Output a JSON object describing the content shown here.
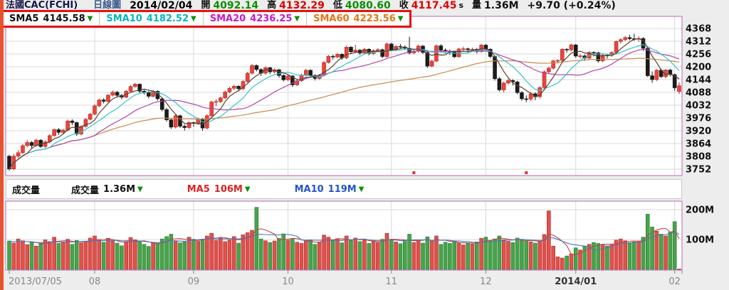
{
  "header": {
    "symbol": "法國CAC(FCHI)",
    "chart_type": "日線圖",
    "date": "2014/02/04",
    "open_label": "開",
    "open": "4092.14",
    "high_label": "高",
    "high": "4132.29",
    "low_label": "低",
    "low": "4080.60",
    "close_label": "收",
    "close": "4117.45",
    "close_suffix": "s",
    "volume_label": "量",
    "volume": "1.36M",
    "change": "+9.70 (+0.24%)"
  },
  "sma_legend": {
    "arrow": "▼",
    "arrow_color": "#089000",
    "items": [
      {
        "label": "SMA5",
        "value": "4145.58",
        "color": "#111111"
      },
      {
        "label": "SMA10",
        "value": "4182.52",
        "color": "#00b5c5"
      },
      {
        "label": "SMA20",
        "value": "4236.25",
        "color": "#c61ac6"
      },
      {
        "label": "SMA60",
        "value": "4223.56",
        "color": "#e0761a"
      }
    ]
  },
  "volume_legend": {
    "title": "成交量",
    "arrow": "▼",
    "items": [
      {
        "label": "成交量",
        "value": "1.36M",
        "color": "#111111"
      },
      {
        "label": "MA5",
        "value": "106M",
        "color": "#dd2222"
      },
      {
        "label": "MA10",
        "value": "119M",
        "color": "#2255cc"
      }
    ]
  },
  "x_axis": {
    "ticks": [
      {
        "label": "2013/07/05",
        "index": 0,
        "bold": false
      },
      {
        "label": "08",
        "index": 19,
        "bold": false
      },
      {
        "label": "09",
        "index": 41,
        "bold": false
      },
      {
        "label": "10",
        "index": 62,
        "bold": false
      },
      {
        "label": "11",
        "index": 85,
        "bold": false
      },
      {
        "label": "12",
        "index": 106,
        "bold": false
      },
      {
        "label": "2014/01",
        "index": 126,
        "bold": true
      },
      {
        "label": "02",
        "index": 148,
        "bold": false
      }
    ]
  },
  "chart_data": [
    {
      "type": "candlestick",
      "name": "price",
      "title": "法國CAC(FCHI) 日線圖",
      "ylim": [
        3724,
        4396
      ],
      "y_ticks": [
        4368,
        4312,
        4256,
        4200,
        4144,
        4088,
        4032,
        3976,
        3920,
        3864,
        3808,
        3752
      ],
      "sma_periods": [
        5,
        10,
        20,
        60
      ],
      "sma_colors": [
        "#5c4033",
        "#35c2c8",
        "#b044aa",
        "#c98a4e"
      ],
      "up_color": "#e8453c",
      "up_stroke": "#b22c25",
      "down_color": "#1b1b1b",
      "event_marker_indices": [
        90,
        115
      ],
      "ohlc": [
        [
          3809,
          3815,
          3745,
          3753
        ],
        [
          3753,
          3818,
          3748,
          3809
        ],
        [
          3809,
          3836,
          3800,
          3824
        ],
        [
          3824,
          3862,
          3818,
          3855
        ],
        [
          3855,
          3880,
          3848,
          3869
        ],
        [
          3869,
          3875,
          3840,
          3855
        ],
        [
          3855,
          3886,
          3850,
          3879
        ],
        [
          3879,
          3884,
          3845,
          3851
        ],
        [
          3851,
          3878,
          3846,
          3872
        ],
        [
          3872,
          3905,
          3866,
          3899
        ],
        [
          3899,
          3931,
          3893,
          3925
        ],
        [
          3925,
          3932,
          3902,
          3913
        ],
        [
          3913,
          3929,
          3905,
          3923
        ],
        [
          3923,
          3969,
          3918,
          3963
        ],
        [
          3963,
          3970,
          3945,
          3956
        ],
        [
          3956,
          3960,
          3898,
          3906
        ],
        [
          3906,
          3944,
          3900,
          3939
        ],
        [
          3939,
          3976,
          3934,
          3970
        ],
        [
          3970,
          3998,
          3965,
          3993
        ],
        [
          3993,
          4035,
          3988,
          4029
        ],
        [
          4029,
          4061,
          4024,
          4055
        ],
        [
          4055,
          4062,
          4040,
          4049
        ],
        [
          4049,
          4080,
          4044,
          4076
        ],
        [
          4076,
          4096,
          4070,
          4089
        ],
        [
          4089,
          4094,
          4066,
          4075
        ],
        [
          4075,
          4082,
          4058,
          4067
        ],
        [
          4067,
          4099,
          4062,
          4093
        ],
        [
          4093,
          4120,
          4088,
          4114
        ],
        [
          4114,
          4130,
          4108,
          4124
        ],
        [
          4124,
          4128,
          4085,
          4093
        ],
        [
          4093,
          4100,
          4078,
          4087
        ],
        [
          4087,
          4094,
          4062,
          4071
        ],
        [
          4071,
          4099,
          4066,
          4093
        ],
        [
          4093,
          4097,
          4052,
          4060
        ],
        [
          4060,
          4066,
          4005,
          4013
        ],
        [
          4013,
          4020,
          3960,
          3968
        ],
        [
          3968,
          3975,
          3928,
          3936
        ],
        [
          3936,
          3992,
          3930,
          3986
        ],
        [
          3986,
          3991,
          3933,
          3940
        ],
        [
          3940,
          3948,
          3921,
          3934
        ],
        [
          3934,
          3962,
          3928,
          3956
        ],
        [
          3956,
          3960,
          3938,
          3952
        ],
        [
          3952,
          3978,
          3946,
          3972
        ],
        [
          3972,
          3976,
          3920,
          3932
        ],
        [
          3932,
          3992,
          3926,
          3986
        ],
        [
          3986,
          4052,
          3980,
          4046
        ],
        [
          4046,
          4058,
          4028,
          4048
        ],
        [
          4048,
          4070,
          4040,
          4064
        ],
        [
          4064,
          4096,
          4058,
          4090
        ],
        [
          4090,
          4112,
          4084,
          4106
        ],
        [
          4106,
          4121,
          4098,
          4115
        ],
        [
          4115,
          4119,
          4092,
          4104
        ],
        [
          4104,
          4142,
          4098,
          4136
        ],
        [
          4136,
          4178,
          4130,
          4172
        ],
        [
          4172,
          4212,
          4166,
          4206
        ],
        [
          4206,
          4210,
          4180,
          4188
        ],
        [
          4188,
          4194,
          4160,
          4172
        ],
        [
          4172,
          4202,
          4166,
          4196
        ],
        [
          4196,
          4200,
          4168,
          4178
        ],
        [
          4178,
          4193,
          4170,
          4187
        ],
        [
          4187,
          4191,
          4152,
          4162
        ],
        [
          4162,
          4168,
          4136,
          4143
        ],
        [
          4143,
          4166,
          4138,
          4160
        ],
        [
          4160,
          4164,
          4112,
          4121
        ],
        [
          4121,
          4145,
          4115,
          4139
        ],
        [
          4139,
          4170,
          4134,
          4164
        ],
        [
          4164,
          4191,
          4158,
          4185
        ],
        [
          4185,
          4189,
          4154,
          4162
        ],
        [
          4162,
          4168,
          4140,
          4149
        ],
        [
          4149,
          4169,
          4143,
          4163
        ],
        [
          4163,
          4225,
          4158,
          4219
        ],
        [
          4219,
          4252,
          4214,
          4246
        ],
        [
          4246,
          4253,
          4232,
          4243
        ],
        [
          4243,
          4261,
          4237,
          4255
        ],
        [
          4255,
          4259,
          4230,
          4239
        ],
        [
          4239,
          4292,
          4234,
          4286
        ],
        [
          4286,
          4290,
          4258,
          4266
        ],
        [
          4266,
          4296,
          4260,
          4273
        ],
        [
          4273,
          4278,
          4252,
          4260
        ],
        [
          4260,
          4283,
          4254,
          4277
        ],
        [
          4277,
          4281,
          4250,
          4258
        ],
        [
          4258,
          4277,
          4252,
          4271
        ],
        [
          4271,
          4282,
          4265,
          4275
        ],
        [
          4275,
          4280,
          4238,
          4245
        ],
        [
          4245,
          4306,
          4240,
          4300
        ],
        [
          4300,
          4305,
          4268,
          4274
        ],
        [
          4274,
          4295,
          4268,
          4289
        ],
        [
          4289,
          4300,
          4282,
          4287
        ],
        [
          4287,
          4293,
          4274,
          4281
        ],
        [
          4281,
          4332,
          4254,
          4261
        ],
        [
          4261,
          4275,
          4255,
          4268
        ],
        [
          4268,
          4297,
          4262,
          4291
        ],
        [
          4291,
          4295,
          4256,
          4263
        ],
        [
          4263,
          4268,
          4195,
          4203
        ],
        [
          4203,
          4231,
          4198,
          4225
        ],
        [
          4225,
          4298,
          4220,
          4292
        ],
        [
          4292,
          4299,
          4262,
          4273
        ],
        [
          4273,
          4281,
          4258,
          4269
        ],
        [
          4269,
          4276,
          4252,
          4267
        ],
        [
          4267,
          4271,
          4238,
          4244
        ],
        [
          4244,
          4283,
          4240,
          4278
        ],
        [
          4278,
          4288,
          4270,
          4279
        ],
        [
          4279,
          4284,
          4262,
          4275
        ],
        [
          4275,
          4284,
          4266,
          4277
        ],
        [
          4277,
          4282,
          4258,
          4267
        ],
        [
          4267,
          4301,
          4262,
          4295
        ],
        [
          4295,
          4300,
          4270,
          4277
        ],
        [
          4277,
          4282,
          4238,
          4245
        ],
        [
          4245,
          4250,
          4140,
          4148
        ],
        [
          4148,
          4155,
          4092,
          4099
        ],
        [
          4099,
          4136,
          4088,
          4129
        ],
        [
          4129,
          4148,
          4122,
          4140
        ],
        [
          4140,
          4146,
          4118,
          4134
        ],
        [
          4134,
          4139,
          4080,
          4087
        ],
        [
          4087,
          4094,
          4052,
          4060
        ],
        [
          4060,
          4075,
          4045,
          4059
        ],
        [
          4059,
          4090,
          4050,
          4082
        ],
        [
          4082,
          4088,
          4054,
          4069
        ],
        [
          4069,
          4115,
          4062,
          4109
        ],
        [
          4109,
          4184,
          4104,
          4178
        ],
        [
          4178,
          4200,
          4172,
          4194
        ],
        [
          4194,
          4231,
          4188,
          4226
        ],
        [
          4226,
          4233,
          4215,
          4228
        ],
        [
          4228,
          4282,
          4222,
          4277
        ],
        [
          4277,
          4281,
          4262,
          4274
        ],
        [
          4274,
          4301,
          4268,
          4296
        ],
        [
          4296,
          4300,
          4240,
          4247
        ],
        [
          4247,
          4256,
          4236,
          4248
        ],
        [
          4248,
          4254,
          4226,
          4238
        ],
        [
          4238,
          4268,
          4232,
          4263
        ],
        [
          4263,
          4268,
          4246,
          4261
        ],
        [
          4261,
          4266,
          4218,
          4226
        ],
        [
          4226,
          4256,
          4220,
          4251
        ],
        [
          4251,
          4257,
          4236,
          4250
        ],
        [
          4250,
          4268,
          4244,
          4263
        ],
        [
          4263,
          4315,
          4258,
          4311
        ],
        [
          4311,
          4325,
          4302,
          4319
        ],
        [
          4319,
          4335,
          4312,
          4328
        ],
        [
          4328,
          4340,
          4316,
          4323
        ],
        [
          4323,
          4345,
          4314,
          4322
        ],
        [
          4322,
          4334,
          4310,
          4324
        ],
        [
          4324,
          4330,
          4270,
          4281
        ],
        [
          4281,
          4286,
          4155,
          4161
        ],
        [
          4161,
          4180,
          4130,
          4144
        ],
        [
          4144,
          4190,
          4138,
          4185
        ],
        [
          4185,
          4192,
          4150,
          4157
        ],
        [
          4157,
          4190,
          4150,
          4186
        ],
        [
          4186,
          4192,
          4158,
          4166
        ],
        [
          4166,
          4170,
          4095,
          4108
        ],
        [
          4092.14,
          4132.29,
          4080.6,
          4117.45
        ]
      ]
    },
    {
      "type": "bar",
      "name": "volume",
      "unit": "M",
      "y_ticks": [
        {
          "label": "200M",
          "value": 200
        },
        {
          "label": "100M",
          "value": 100
        }
      ],
      "ma_periods": [
        5,
        10
      ],
      "ma_colors": [
        "#c24545",
        "#4a7ab5"
      ],
      "up_color": "#e2504a",
      "up_stroke": "#a83030",
      "down_color": "#46a44a",
      "down_stroke": "#2e7a32",
      "values": [
        95,
        88,
        102,
        96,
        83,
        91,
        78,
        85,
        99,
        93,
        108,
        87,
        92,
        101,
        84,
        97,
        89,
        94,
        105,
        112,
        98,
        91,
        104,
        96,
        88,
        79,
        93,
        107,
        99,
        95,
        84,
        77,
        90,
        86,
        102,
        110,
        118,
        96,
        89,
        92,
        108,
        101,
        94,
        99,
        112,
        121,
        97,
        105,
        93,
        99,
        110,
        88,
        116,
        123,
        131,
        208,
        102,
        96,
        90,
        95,
        104,
        119,
        98,
        104,
        91,
        87,
        95,
        99,
        84,
        92,
        115,
        108,
        96,
        103,
        89,
        112,
        97,
        105,
        93,
        99,
        87,
        94,
        90,
        101,
        121,
        99,
        92,
        86,
        94,
        118,
        90,
        97,
        88,
        109,
        95,
        112,
        84,
        91,
        87,
        96,
        90,
        82,
        88,
        85,
        92,
        104,
        108,
        96,
        102,
        112,
        99,
        94,
        90,
        105,
        98,
        96,
        92,
        88,
        95,
        117,
        196,
        78,
        42,
        38,
        45,
        52,
        72,
        65,
        78,
        84,
        90,
        87,
        82,
        79,
        85,
        98,
        102,
        96,
        88,
        92,
        95,
        108,
        185,
        142,
        128,
        118,
        112,
        125,
        160,
        1.36
      ]
    }
  ]
}
